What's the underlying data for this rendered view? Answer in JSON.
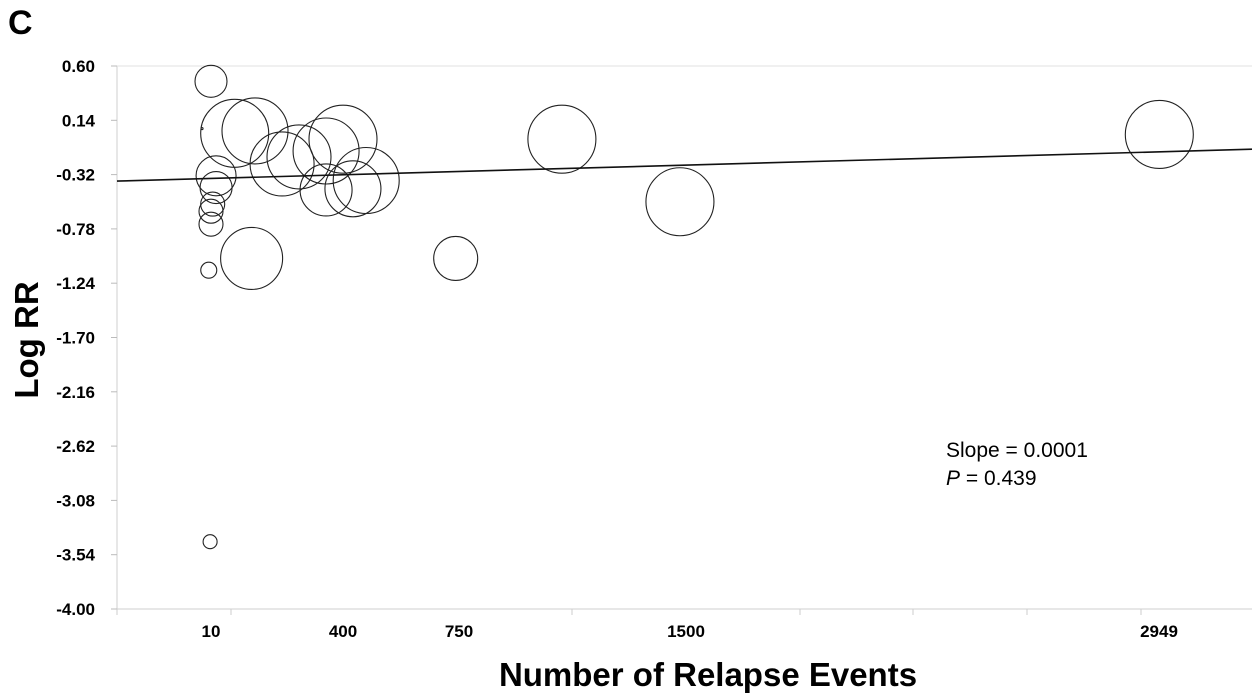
{
  "panel_label": "C",
  "chart_data": {
    "type": "scatter",
    "xlabel": "Number of Relapse Events",
    "ylabel": "Log RR",
    "x_ticks": [
      10,
      400,
      750,
      1500,
      2949
    ],
    "y_ticks": [
      0.6,
      0.14,
      -0.32,
      -0.78,
      -1.24,
      -1.7,
      -2.16,
      -2.62,
      -3.08,
      -3.54,
      -4.0
    ],
    "y_tick_labels": [
      "0.60",
      "0.14",
      "-0.32",
      "-0.78",
      "-1.24",
      "-1.70",
      "-2.16",
      "-2.62",
      "-3.08",
      "-3.54",
      "-4.00"
    ],
    "ylim": [
      -4.0,
      0.6
    ],
    "grid": false,
    "points": [
      {
        "x": 10,
        "y": 0.47,
        "size": 16
      },
      {
        "x": -10,
        "y": 0.07,
        "size": 1
      },
      {
        "x": 80,
        "y": 0.03,
        "size": 34
      },
      {
        "x": 140,
        "y": 0.05,
        "size": 33
      },
      {
        "x": 220,
        "y": -0.23,
        "size": 32
      },
      {
        "x": 270,
        "y": -0.17,
        "size": 32
      },
      {
        "x": 350,
        "y": -0.12,
        "size": 33
      },
      {
        "x": 400,
        "y": -0.02,
        "size": 34
      },
      {
        "x": 350,
        "y": -0.45,
        "size": 26
      },
      {
        "x": 470,
        "y": -0.37,
        "size": 33
      },
      {
        "x": 430,
        "y": -0.44,
        "size": 28
      },
      {
        "x": 25,
        "y": -0.33,
        "size": 20
      },
      {
        "x": 25,
        "y": -0.43,
        "size": 16
      },
      {
        "x": 15,
        "y": -0.57,
        "size": 12
      },
      {
        "x": 10,
        "y": -0.63,
        "size": 12
      },
      {
        "x": 10,
        "y": -0.74,
        "size": 12
      },
      {
        "x": 5,
        "y": -1.13,
        "size": 8
      },
      {
        "x": 130,
        "y": -1.03,
        "size": 31
      },
      {
        "x": 740,
        "y": -1.03,
        "size": 22
      },
      {
        "x": 1090,
        "y": -0.02,
        "size": 34
      },
      {
        "x": 1480,
        "y": -0.55,
        "size": 34
      },
      {
        "x": 2950,
        "y": 0.02,
        "size": 34
      },
      {
        "x": 8,
        "y": -3.43,
        "size": 7
      }
    ],
    "regression": {
      "slope": 0.0001,
      "p_value": 0.439,
      "y_at_xmin": -0.375,
      "y_at_xmax": -0.105
    }
  },
  "annotation": {
    "slope_text": "Slope = 0.0001",
    "p_label": "P",
    "p_value_text": " = 0.439"
  }
}
